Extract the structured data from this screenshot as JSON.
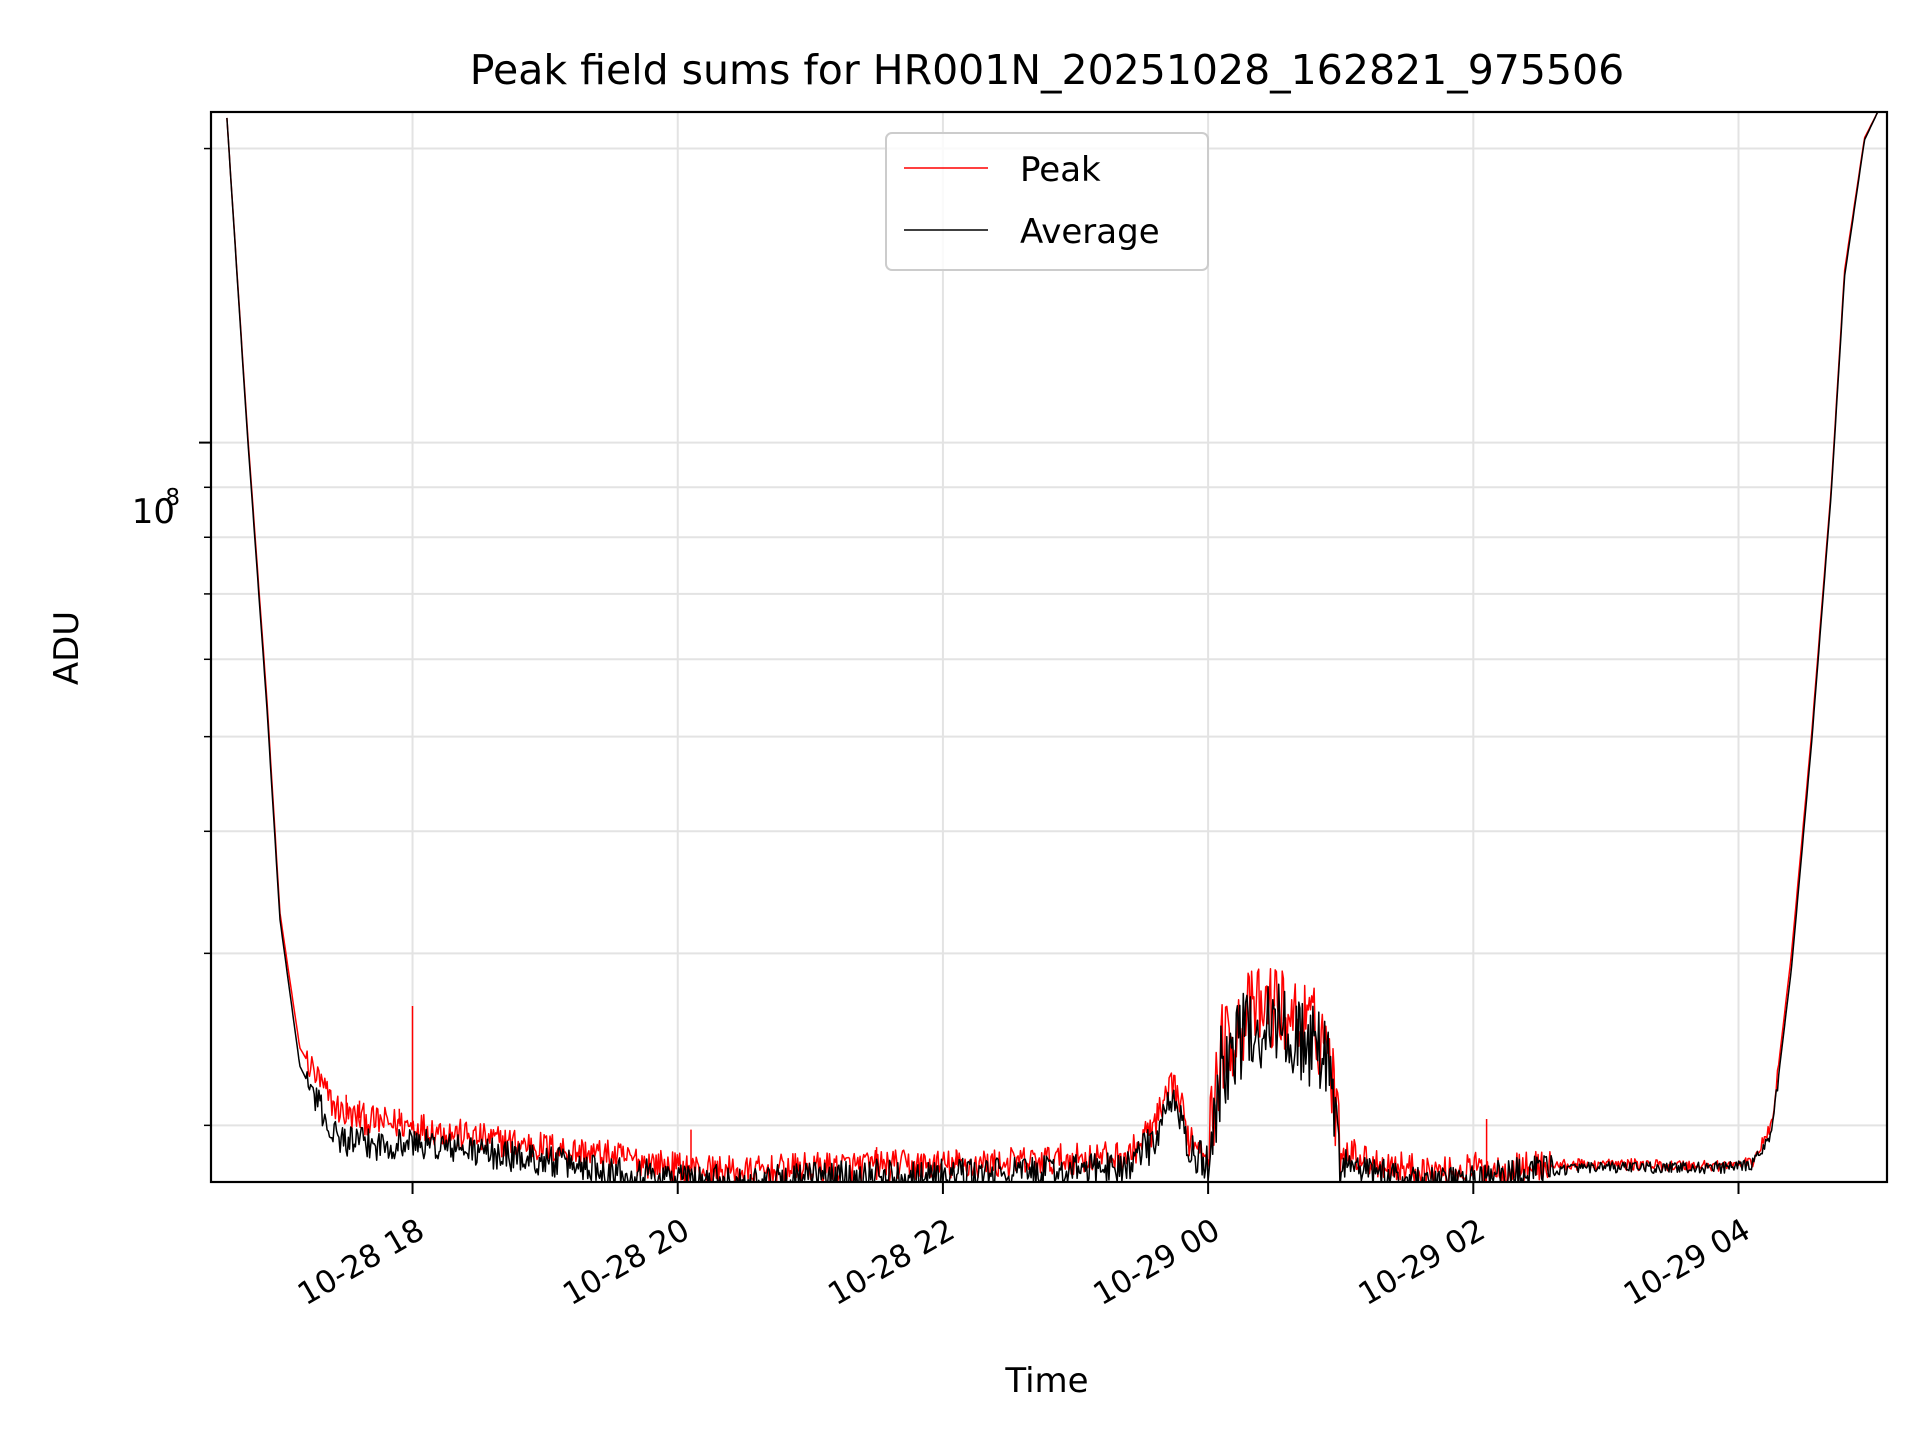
{
  "chart_data": {
    "type": "line",
    "title": "Peak field sums for HR001N_20251028_162821_975506",
    "xlabel": "Time",
    "ylabel": "ADU",
    "yscale": "log",
    "y_major_tick_label": {
      "base": "10",
      "exponent": "8",
      "value": 100000000
    },
    "ylim": [
      17500000,
      218000000
    ],
    "xlim_hours_from_10_28_00": [
      16.48,
      29.12
    ],
    "x_ticks": [
      {
        "label": "10-28 18",
        "hour": 18
      },
      {
        "label": "10-28 20",
        "hour": 20
      },
      {
        "label": "10-28 22",
        "hour": 22
      },
      {
        "label": "10-29 00",
        "hour": 24
      },
      {
        "label": "10-29 02",
        "hour": 26
      },
      {
        "label": "10-29 04",
        "hour": 28
      }
    ],
    "legend": {
      "placement": "top-center",
      "entries": [
        "Peak",
        "Average"
      ]
    },
    "series": [
      {
        "name": "Peak",
        "color": "#ff0000",
        "x_hours": [
          16.6,
          16.75,
          16.9,
          17.0,
          17.15,
          17.4,
          17.5,
          17.7,
          18.0,
          18.5,
          19.0,
          19.5,
          20.0,
          20.5,
          21.0,
          21.5,
          22.0,
          22.5,
          23.0,
          23.4,
          23.6,
          23.75,
          23.85,
          24.0,
          24.1,
          24.3,
          24.5,
          24.7,
          24.9,
          25.0,
          25.2,
          25.5,
          25.8,
          26.0,
          26.2,
          26.5,
          27.0,
          27.5,
          27.9,
          28.1,
          28.25,
          28.4,
          28.55,
          28.7,
          28.8,
          28.95,
          29.05
        ],
        "values": [
          215000000,
          105000000,
          55000000,
          33000000,
          24000000,
          21000000,
          20500000,
          20200000,
          20000000,
          19400000,
          19000000,
          18600000,
          18100000,
          17900000,
          18100000,
          18200000,
          18200000,
          18300000,
          18500000,
          18600000,
          20000000,
          22000000,
          19500000,
          19000000,
          24000000,
          26000000,
          26500000,
          25500000,
          24500000,
          19000000,
          18400000,
          18100000,
          17900000,
          18100000,
          18000000,
          18200000,
          18250000,
          18200000,
          18200000,
          18300000,
          20000000,
          30000000,
          50000000,
          90000000,
          150000000,
          205000000,
          218000000
        ],
        "spikes": [
          {
            "x_hour": 17.5,
            "value": 21500000
          },
          {
            "x_hour": 17.6,
            "value": 21200000
          },
          {
            "x_hour": 17.9,
            "value": 20800000
          },
          {
            "x_hour": 18.0,
            "value": 26500000
          },
          {
            "x_hour": 20.1,
            "value": 19800000
          },
          {
            "x_hour": 21.5,
            "value": 19000000
          },
          {
            "x_hour": 22.1,
            "value": 18900000
          },
          {
            "x_hour": 24.5,
            "value": 27500000
          },
          {
            "x_hour": 26.1,
            "value": 20300000
          }
        ]
      },
      {
        "name": "Average",
        "color": "#000000",
        "x_hours": [
          16.6,
          16.75,
          16.9,
          17.0,
          17.15,
          17.4,
          17.5,
          17.7,
          18.0,
          18.5,
          19.0,
          19.5,
          20.0,
          20.5,
          21.0,
          21.5,
          22.0,
          22.5,
          23.0,
          23.4,
          23.6,
          23.75,
          23.85,
          24.0,
          24.1,
          24.3,
          24.5,
          24.7,
          24.9,
          25.0,
          25.2,
          25.5,
          25.8,
          26.0,
          26.2,
          26.5,
          27.0,
          27.5,
          27.9,
          28.1,
          28.25,
          28.4,
          28.55,
          28.7,
          28.8,
          28.95,
          29.05
        ],
        "values": [
          215000000,
          104000000,
          54000000,
          32500000,
          23000000,
          19600000,
          19300000,
          19100000,
          19200000,
          18800000,
          18400000,
          18000000,
          17700000,
          17500000,
          17700000,
          17800000,
          17800000,
          17900000,
          18000000,
          18200000,
          19300000,
          21500000,
          18800000,
          18200000,
          23000000,
          25000000,
          25500000,
          24500000,
          23500000,
          18400000,
          17900000,
          17700000,
          17500000,
          17600000,
          17800000,
          18000000,
          18100000,
          18100000,
          18100000,
          18200000,
          19600000,
          29000000,
          49000000,
          89000000,
          148000000,
          204000000,
          218000000
        ]
      }
    ]
  }
}
